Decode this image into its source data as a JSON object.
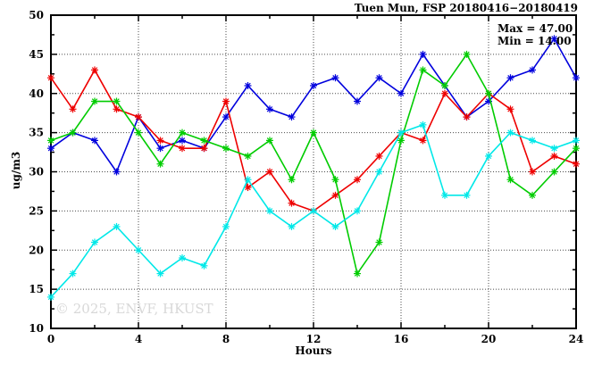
{
  "title": "Tuen Mun, FSP 20180416−20180419",
  "annotations": {
    "max_label": "Max = 47.00",
    "min_label": "Min = 14.00"
  },
  "watermark": "© 2025, ENVF, HKUST",
  "chart_data": {
    "type": "line",
    "title": "Tuen Mun, FSP 20180416−20180419",
    "xlabel": "Hours",
    "ylabel": "ug/m3",
    "xlim": [
      0,
      24
    ],
    "ylim": [
      10,
      50
    ],
    "x_major_ticks": [
      0,
      4,
      8,
      12,
      16,
      20,
      24
    ],
    "x_minor_step": 2,
    "y_major_ticks": [
      10,
      15,
      20,
      25,
      30,
      35,
      40,
      45,
      50
    ],
    "y_minor_step": 2.5,
    "grid": "dotted-at-major-ticks",
    "legend_position": "none",
    "marker": "asterisk",
    "x": [
      0,
      1,
      2,
      3,
      4,
      5,
      6,
      7,
      8,
      9,
      10,
      11,
      12,
      13,
      14,
      15,
      16,
      17,
      18,
      19,
      20,
      21,
      22,
      23,
      24
    ],
    "series": [
      {
        "name": "series-1",
        "color": "#0000dd",
        "values": [
          33,
          35,
          34,
          30,
          37,
          33,
          34,
          33,
          37,
          41,
          38,
          37,
          41,
          42,
          39,
          42,
          40,
          45,
          41,
          37,
          39,
          42,
          43,
          47,
          42
        ]
      },
      {
        "name": "series-2",
        "color": "#ee0000",
        "values": [
          42,
          38,
          43,
          38,
          37,
          34,
          33,
          33,
          39,
          28,
          30,
          26,
          25,
          27,
          29,
          32,
          35,
          34,
          40,
          37,
          40,
          38,
          30,
          32,
          31
        ]
      },
      {
        "name": "series-3",
        "color": "#00cc00",
        "values": [
          34,
          35,
          39,
          39,
          35,
          31,
          35,
          34,
          33,
          32,
          34,
          29,
          35,
          29,
          17,
          21,
          34,
          43,
          41,
          45,
          40,
          29,
          27,
          30,
          33
        ]
      },
      {
        "name": "series-4",
        "color": "#00e8e8",
        "values": [
          14,
          17,
          21,
          23,
          20,
          17,
          19,
          18,
          23,
          29,
          25,
          23,
          25,
          23,
          25,
          30,
          35,
          36,
          27,
          27,
          32,
          35,
          34,
          33,
          34
        ]
      }
    ],
    "max": 47.0,
    "min": 14.0
  }
}
